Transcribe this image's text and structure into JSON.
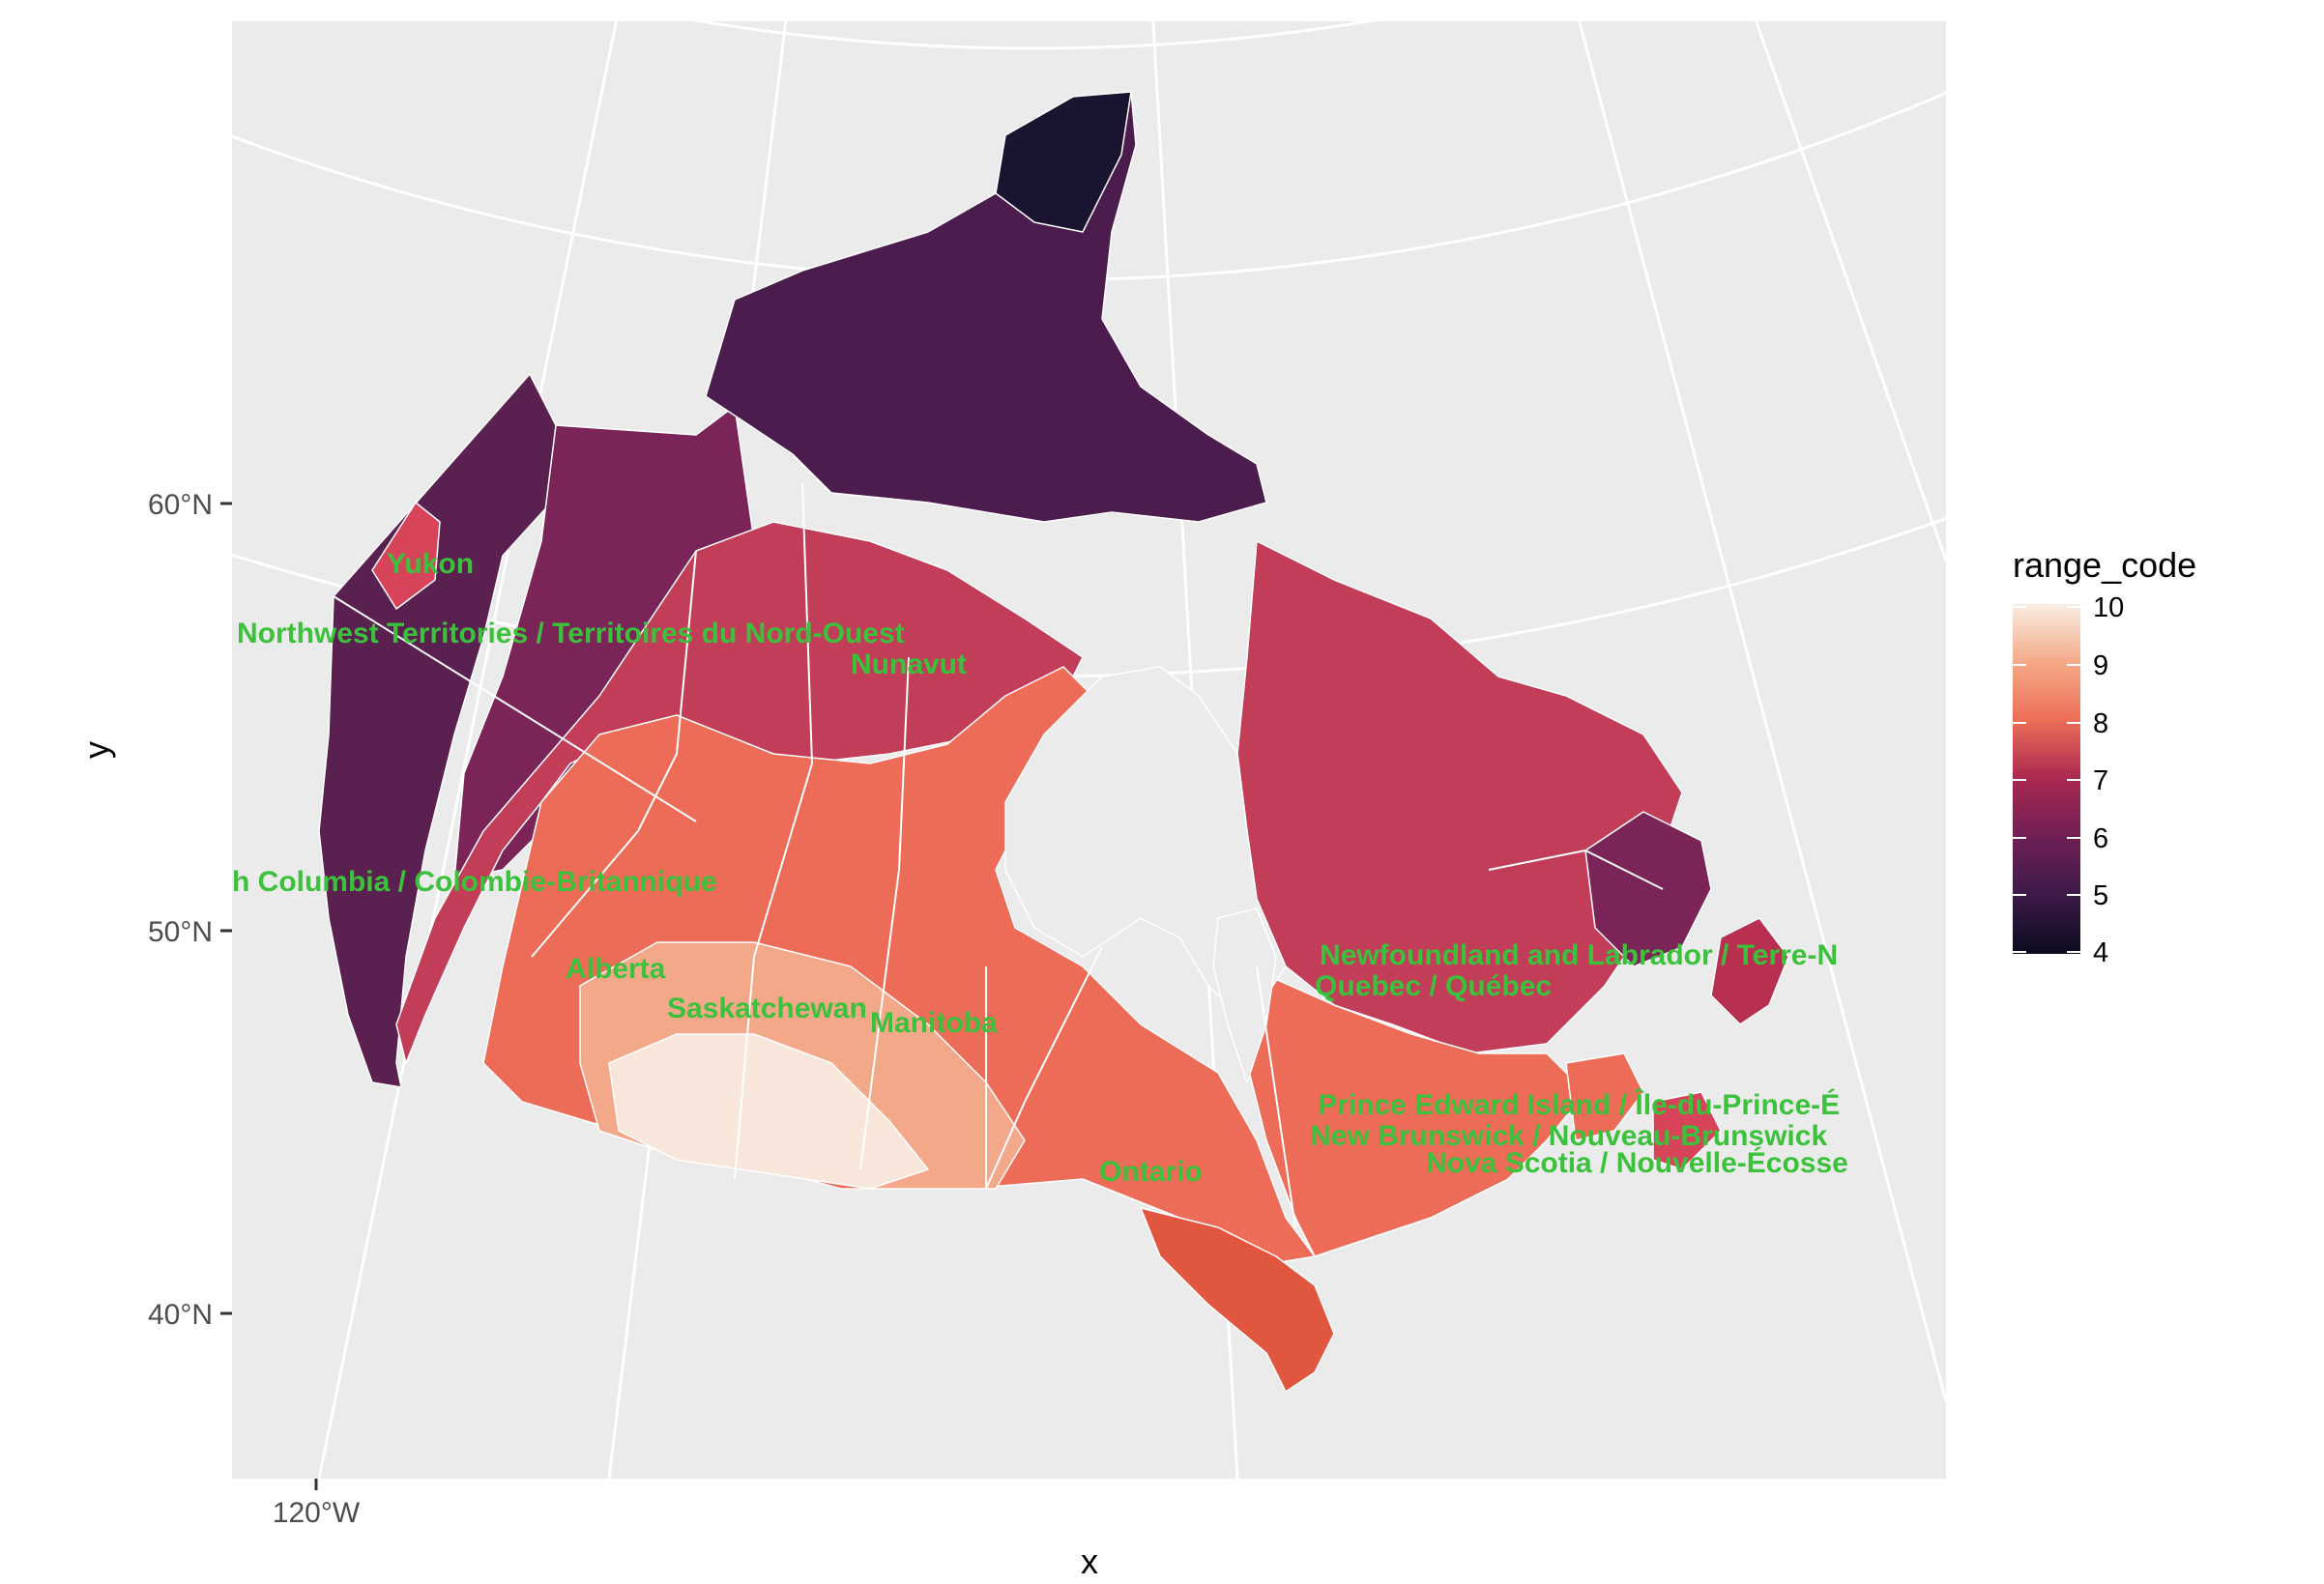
{
  "axes": {
    "x_title": "x",
    "y_title": "y",
    "x_ticks": [
      "120°W"
    ],
    "y_ticks": [
      "60°N",
      "50°N",
      "40°N"
    ]
  },
  "legend": {
    "title": "range_code",
    "ticks": [
      "10",
      "9",
      "8",
      "7",
      "6",
      "5",
      "4"
    ],
    "min": 4,
    "max": 10,
    "colors": [
      "#0b0a1e",
      "#3c1a48",
      "#6e1f55",
      "#a9284f",
      "#d73f45",
      "#ec6e57",
      "#f4a886",
      "#faeee3"
    ]
  },
  "colors": {
    "panel_background": "#ebebeb",
    "grid_line": "#ffffff",
    "label_color": "#3cc13c"
  },
  "labels": [
    "Yukon",
    "Northwest Territories / Territoires du Nord-Ouest",
    "Nunavut",
    "h Columbia / Colombie-Britannique",
    "Alberta",
    "Saskatchewan",
    "Manitoba",
    "Ontario",
    "Newfoundland and Labrador / Terre-N",
    "Quebec / Québec",
    "Prince Edward Island / Île-du-Prince-É",
    "New Brunswick / Nouveau-Brunswick",
    "Nova Scotia / Nouvelle-Écosse"
  ]
}
